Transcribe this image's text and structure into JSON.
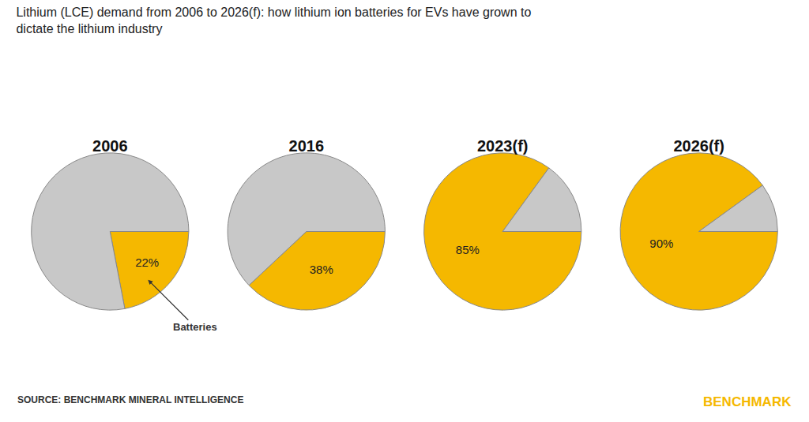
{
  "title": "Lithium (LCE) demand from 2006 to 2026(f): how lithium ion batteries for EVs have grown to\ndictate the lithium industry",
  "annotations": [
    {
      "text": "SOURCE: BENCHMARK MINERAL INTELLIGENCE"
    },
    {
      "text": "BENCHMARK",
      "color": "#F5B800"
    }
  ],
  "chart_data": [
    {
      "type": "pie",
      "title": "2006",
      "values": [
        22,
        78
      ],
      "colors": [
        "#F5B800",
        "#C8C8C8"
      ],
      "data_labels": true,
      "value_labels": [
        "22%",
        null
      ],
      "annotations": [
        "Batteries"
      ]
    },
    {
      "type": "pie",
      "title": "2016",
      "values": [
        38,
        62
      ],
      "colors": [
        "#F5B800",
        "#C8C8C8"
      ],
      "data_labels": true,
      "value_labels": [
        "38%",
        null
      ]
    },
    {
      "type": "pie",
      "title": "2023(f)",
      "values": [
        85,
        15
      ],
      "colors": [
        "#F5B800",
        "#C8C8C8"
      ],
      "data_labels": true,
      "value_labels": [
        "85%",
        null
      ]
    },
    {
      "type": "pie",
      "title": "2026(f)",
      "values": [
        90,
        10
      ],
      "colors": [
        "#F5B800",
        "#C8C8C8"
      ],
      "data_labels": true,
      "value_labels": [
        "90%",
        null
      ]
    }
  ]
}
